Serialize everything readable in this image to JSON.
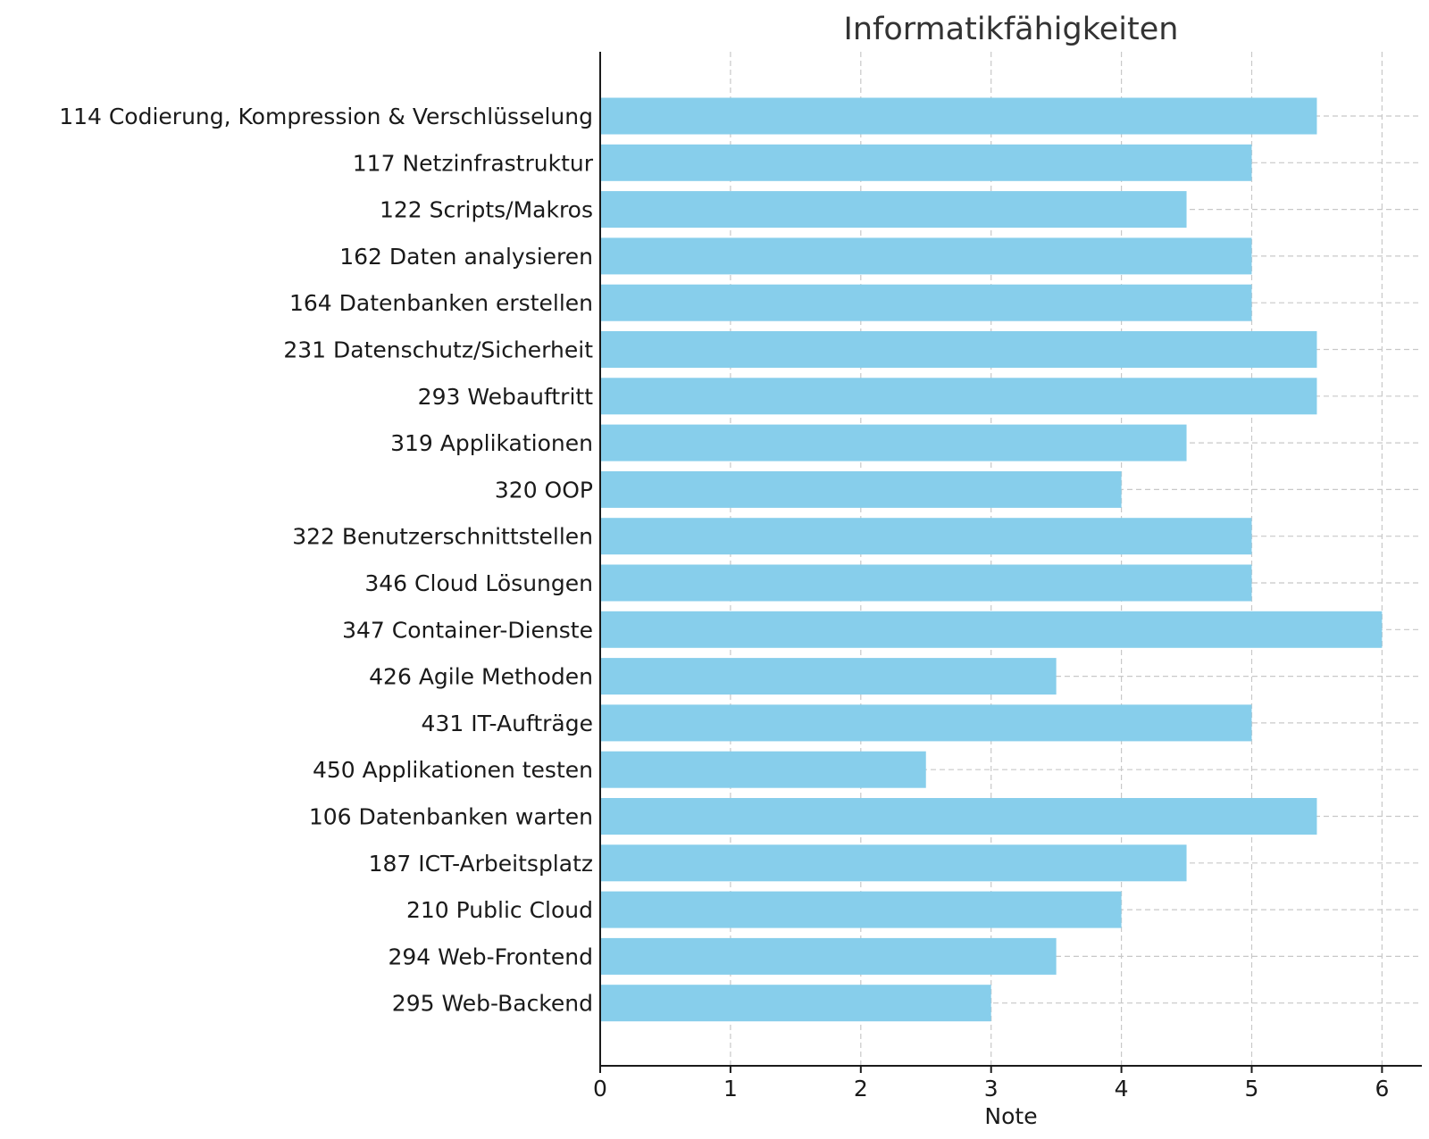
{
  "chart_data": {
    "type": "bar",
    "orientation": "horizontal",
    "title": "Informatikfähigkeiten",
    "xlabel": "Note",
    "ylabel": "",
    "xlim": [
      0,
      6.3
    ],
    "xticks": [
      0,
      1,
      2,
      3,
      4,
      5,
      6
    ],
    "grid": true,
    "bar_color": "#87ceeb",
    "categories": [
      "114 Codierung, Kompression & Verschlüsselung",
      "117 Netzinfrastruktur",
      "122 Scripts/Makros",
      "162 Daten analysieren",
      "164 Datenbanken erstellen",
      "231 Datenschutz/Sicherheit",
      "293 Webauftritt",
      "319 Applikationen",
      "320 OOP",
      "322 Benutzerschnittstellen",
      "346 Cloud Lösungen",
      "347 Container-Dienste",
      "426 Agile Methoden",
      "431 IT-Aufträge",
      "450 Applikationen testen",
      "106 Datenbanken warten",
      "187 ICT-Arbeitsplatz",
      "210 Public Cloud",
      "294 Web-Frontend",
      "295 Web-Backend"
    ],
    "values": [
      5.5,
      5,
      4.5,
      5,
      5,
      5.5,
      5.5,
      4.5,
      4,
      5,
      5,
      6,
      3.5,
      5,
      2.5,
      5.5,
      4.5,
      4,
      3.5,
      3
    ]
  }
}
